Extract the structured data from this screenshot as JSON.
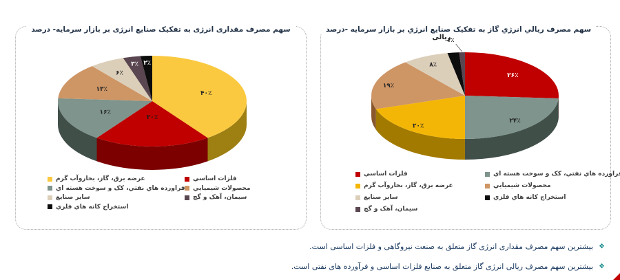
{
  "colors": {
    "accent_red": "#C00000",
    "bullet_teal": "#1F8E8E",
    "title_text": "#203045",
    "footer_text": "#17375E",
    "panel_border": "#A8A8A8"
  },
  "chart_data": [
    {
      "type": "pie",
      "variant": "3d",
      "title": "سهم مصرف مقداری انرژی به تفکیک صنایع انرژی بر بازار سرمایه- درصد",
      "unit": "درصد",
      "legend_position": "bottom",
      "legend_columns": [
        [
          1,
          3,
          5
        ],
        [
          0,
          2,
          4,
          6
        ]
      ],
      "slices": [
        {
          "label": "عرضه برق، گاز، بخاروآب گرم",
          "value": 40,
          "value_label": "۴۰٪",
          "color": "#FAC93F",
          "side_color": "#9D7F12",
          "label_color": "#262626",
          "label_r": 0.6
        },
        {
          "label": "فلزات اساسي",
          "value": 20,
          "value_label": "۲۰٪",
          "color": "#C00000",
          "side_color": "#7C0000",
          "label_color": "#1A1A1A",
          "label_r": 0.35
        },
        {
          "label": "فراورده هاي نفتي، کک و سوخت هسته اي",
          "value": 16,
          "value_label": "۱۶٪",
          "color": "#7E948C",
          "side_color": "#414F49",
          "label_color": "#262626",
          "label_r": 0.55
        },
        {
          "label": "محصولات شیمیایي",
          "value": 13,
          "value_label": "۱۳٪",
          "color": "#CE9565",
          "side_color": "#88572B",
          "label_color": "#262626",
          "label_r": 0.6
        },
        {
          "label": "سایر صنایع",
          "value": 6,
          "value_label": "۶٪",
          "color": "#DCCFBA",
          "side_color": "#9E9278",
          "label_color": "#262626",
          "label_r": 0.72
        },
        {
          "label": "سیمان، آهک و گچ",
          "value": 3,
          "value_label": "۳٪",
          "color": "#5A4650",
          "side_color": "#362A30",
          "label_color": "#FFFFFF",
          "label_r": 0.85
        },
        {
          "label": "استخراج کانه هاي فلزي",
          "value": 2,
          "value_label": "۲٪",
          "color": "#0D0D0D",
          "side_color": "#000000",
          "label_color": "#FFFFFF",
          "label_r": 0.85
        }
      ]
    },
    {
      "type": "pie",
      "variant": "3d",
      "title": "سهم مصرف ريالي انرژي گاز به تفکیک صنایع انرژي بر بازار سرمایه -درصد",
      "unit": "درصد",
      "series_label": "ریالی",
      "legend_position": "bottom",
      "legend_columns": [
        [
          1,
          3,
          5
        ],
        [
          0,
          2,
          4,
          6
        ]
      ],
      "slices": [
        {
          "label": "فلزات اساسي",
          "value": 26,
          "value_label": "۲۶٪",
          "color": "#C00000",
          "side_color": "#7C0000",
          "label_color": "#FFFFFF",
          "label_r": 0.7
        },
        {
          "label": "فراورده هاي نفتي، کک و سوخت هسته اي",
          "value": 24,
          "value_label": "۲۴٪",
          "color": "#7E948C",
          "side_color": "#414F49",
          "label_color": "#262626",
          "label_r": 0.78
        },
        {
          "label": "عرضه برق، گاز، بخاروآب گرم",
          "value": 20,
          "value_label": "۲۰٪",
          "color": "#F4B606",
          "side_color": "#A27A00",
          "label_color": "#262626",
          "label_r": 0.85
        },
        {
          "label": "محصولات شیمیایي",
          "value": 19,
          "value_label": "۱۹٪",
          "color": "#CE9565",
          "side_color": "#88572B",
          "label_color": "#262626",
          "label_r": 0.85
        },
        {
          "label": "سایر صنایع",
          "value": 8,
          "value_label": "۸٪",
          "color": "#DCCFBA",
          "side_color": "#9E9278",
          "label_color": "#262626",
          "label_r": 0.8
        },
        {
          "label": "استخراج کانه هاي فلزي",
          "value": 2,
          "value_label": "",
          "color": "#0D0D0D",
          "side_color": "#000000",
          "label_color": "#FFFFFF",
          "label_r": 0.85
        },
        {
          "label": "سیمان، آهک و گچ",
          "value": 1,
          "value_label": "۱٪",
          "color": "#5A4650",
          "side_color": "#362A30",
          "label_color": "#262626",
          "callout": true
        }
      ]
    }
  ],
  "footer": {
    "bullet_icon": "❖",
    "bullets": [
      "بیشترین سهم مصرف مقداری انرژی گاز متعلق به صنعت نیروگاهی و فلزات اساسی است.",
      "بیشترین سهم مصرف ریالی انرژی گاز متعلق به صنایع فلزات اساسی و فرآورده های نفتی است."
    ]
  }
}
